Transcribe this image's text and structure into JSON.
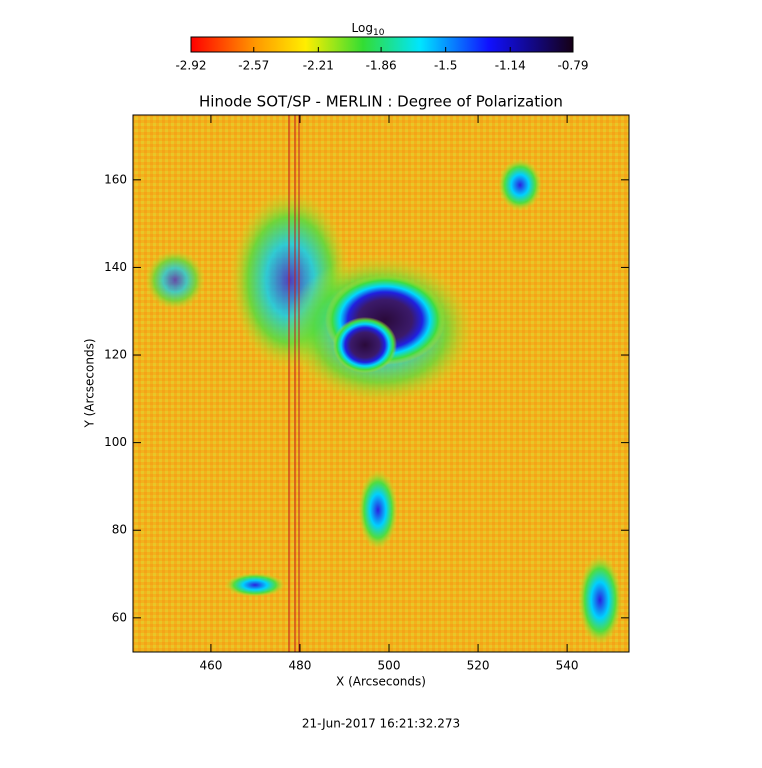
{
  "chart_data": {
    "type": "image",
    "title": "Hinode SOT/SP - MERLIN : Degree of Polarization",
    "x_label": "X (Arcseconds)",
    "y_label": "Y (Arcseconds)",
    "xlim": [
      442.5,
      553.9
    ],
    "xticks": [
      460,
      480,
      500,
      520,
      540
    ],
    "ylim": [
      52.2,
      174.8
    ],
    "yticks": [
      60,
      80,
      100,
      120,
      140,
      160
    ],
    "colorbar": {
      "label": "Log",
      "label_sub": "10",
      "clim": [
        -2.92,
        -0.79
      ],
      "ticks": [
        -2.92,
        -2.57,
        -2.21,
        -1.86,
        -1.5,
        -1.14,
        -0.79
      ]
    },
    "timestamp": "21-Jun-2017 16:21:32.273"
  }
}
